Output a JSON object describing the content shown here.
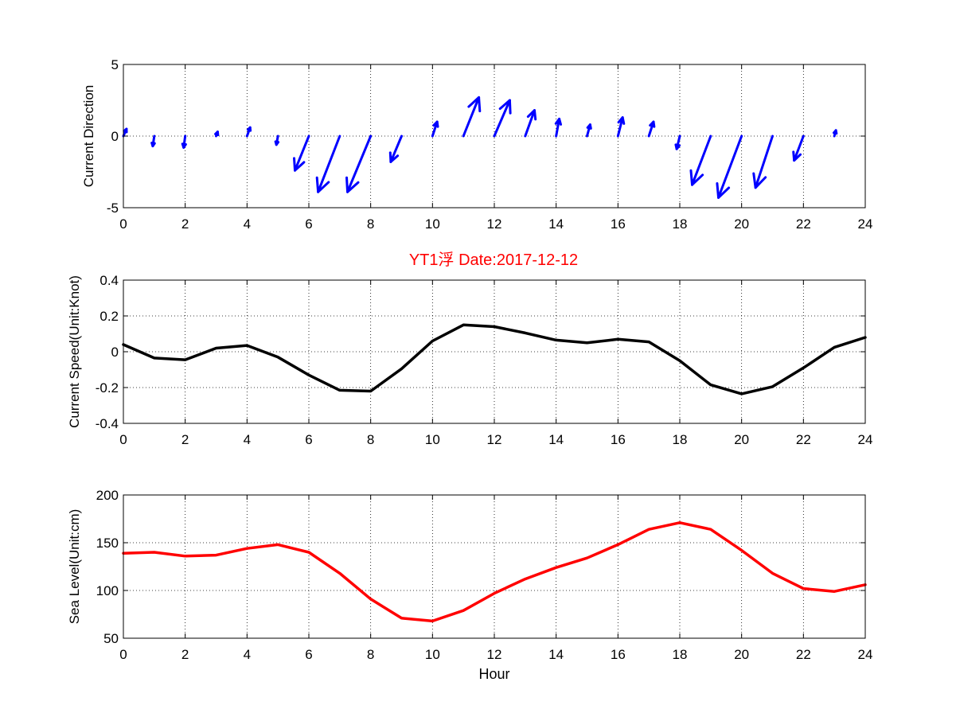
{
  "figure": {
    "title": "YT1浮    Date:2017-12-12",
    "title_color": "#ff0000"
  },
  "chart_data": [
    {
      "type": "quiver",
      "ylabel": "Current Direction",
      "xlabel": "",
      "xlim": [
        0,
        24
      ],
      "ylim": [
        -5,
        5
      ],
      "xticks": [
        0,
        2,
        4,
        6,
        8,
        10,
        12,
        14,
        16,
        18,
        20,
        22,
        24
      ],
      "yticks": [
        -5,
        0,
        5
      ],
      "grid": true,
      "color": "#0000ff",
      "x": [
        0,
        1,
        2,
        3,
        4,
        5,
        6,
        7,
        8,
        9,
        10,
        11,
        12,
        13,
        14,
        15,
        16,
        17,
        18,
        19,
        20,
        21,
        22,
        23
      ],
      "u": [
        0.1,
        -0.05,
        -0.05,
        0.05,
        0.1,
        -0.05,
        -0.45,
        -0.7,
        -0.75,
        -0.35,
        0.15,
        0.5,
        0.5,
        0.3,
        0.1,
        0.1,
        0.15,
        0.15,
        -0.1,
        -0.6,
        -0.75,
        -0.55,
        -0.3,
        0.05
      ],
      "v": [
        0.5,
        -0.7,
        -0.8,
        0.3,
        0.6,
        -0.6,
        -2.4,
        -3.9,
        -3.9,
        -1.8,
        1.0,
        2.7,
        2.5,
        1.8,
        1.2,
        0.8,
        1.3,
        1.0,
        -0.9,
        -3.4,
        -4.3,
        -3.6,
        -1.7,
        0.4
      ]
    },
    {
      "type": "line",
      "ylabel": "Current Speed(Unit:Knot)",
      "xlabel": "",
      "xlim": [
        0,
        24
      ],
      "ylim": [
        -0.4,
        0.4
      ],
      "xticks": [
        0,
        2,
        4,
        6,
        8,
        10,
        12,
        14,
        16,
        18,
        20,
        22,
        24
      ],
      "yticks": [
        -0.4,
        -0.2,
        0,
        0.2,
        0.4
      ],
      "grid": true,
      "x": [
        0,
        1,
        2,
        3,
        4,
        5,
        6,
        7,
        8,
        9,
        10,
        11,
        12,
        13,
        14,
        15,
        16,
        17,
        18,
        19,
        20,
        21,
        22,
        23,
        24
      ],
      "series": [
        {
          "color": "#000000",
          "values": [
            0.04,
            -0.035,
            -0.045,
            0.02,
            0.035,
            -0.03,
            -0.13,
            -0.215,
            -0.22,
            -0.095,
            0.06,
            0.15,
            0.14,
            0.105,
            0.065,
            0.05,
            0.07,
            0.055,
            -0.05,
            -0.185,
            -0.235,
            -0.195,
            -0.09,
            0.025,
            0.08
          ]
        }
      ]
    },
    {
      "type": "line",
      "ylabel": "Sea Level(Unit:cm)",
      "xlabel": "Hour",
      "xlim": [
        0,
        24
      ],
      "ylim": [
        50,
        200
      ],
      "xticks": [
        0,
        2,
        4,
        6,
        8,
        10,
        12,
        14,
        16,
        18,
        20,
        22,
        24
      ],
      "yticks": [
        50,
        100,
        150,
        200
      ],
      "grid": true,
      "x": [
        0,
        1,
        2,
        3,
        4,
        5,
        6,
        7,
        8,
        9,
        10,
        11,
        12,
        13,
        14,
        15,
        16,
        17,
        18,
        19,
        20,
        21,
        22,
        23,
        24
      ],
      "series": [
        {
          "color": "#ff0000",
          "values": [
            139,
            140,
            136,
            137,
            144,
            148,
            140,
            118,
            91,
            71,
            68,
            79,
            97,
            112,
            124,
            134,
            148,
            164,
            171,
            164,
            142,
            118,
            102,
            99,
            106
          ]
        }
      ]
    }
  ]
}
